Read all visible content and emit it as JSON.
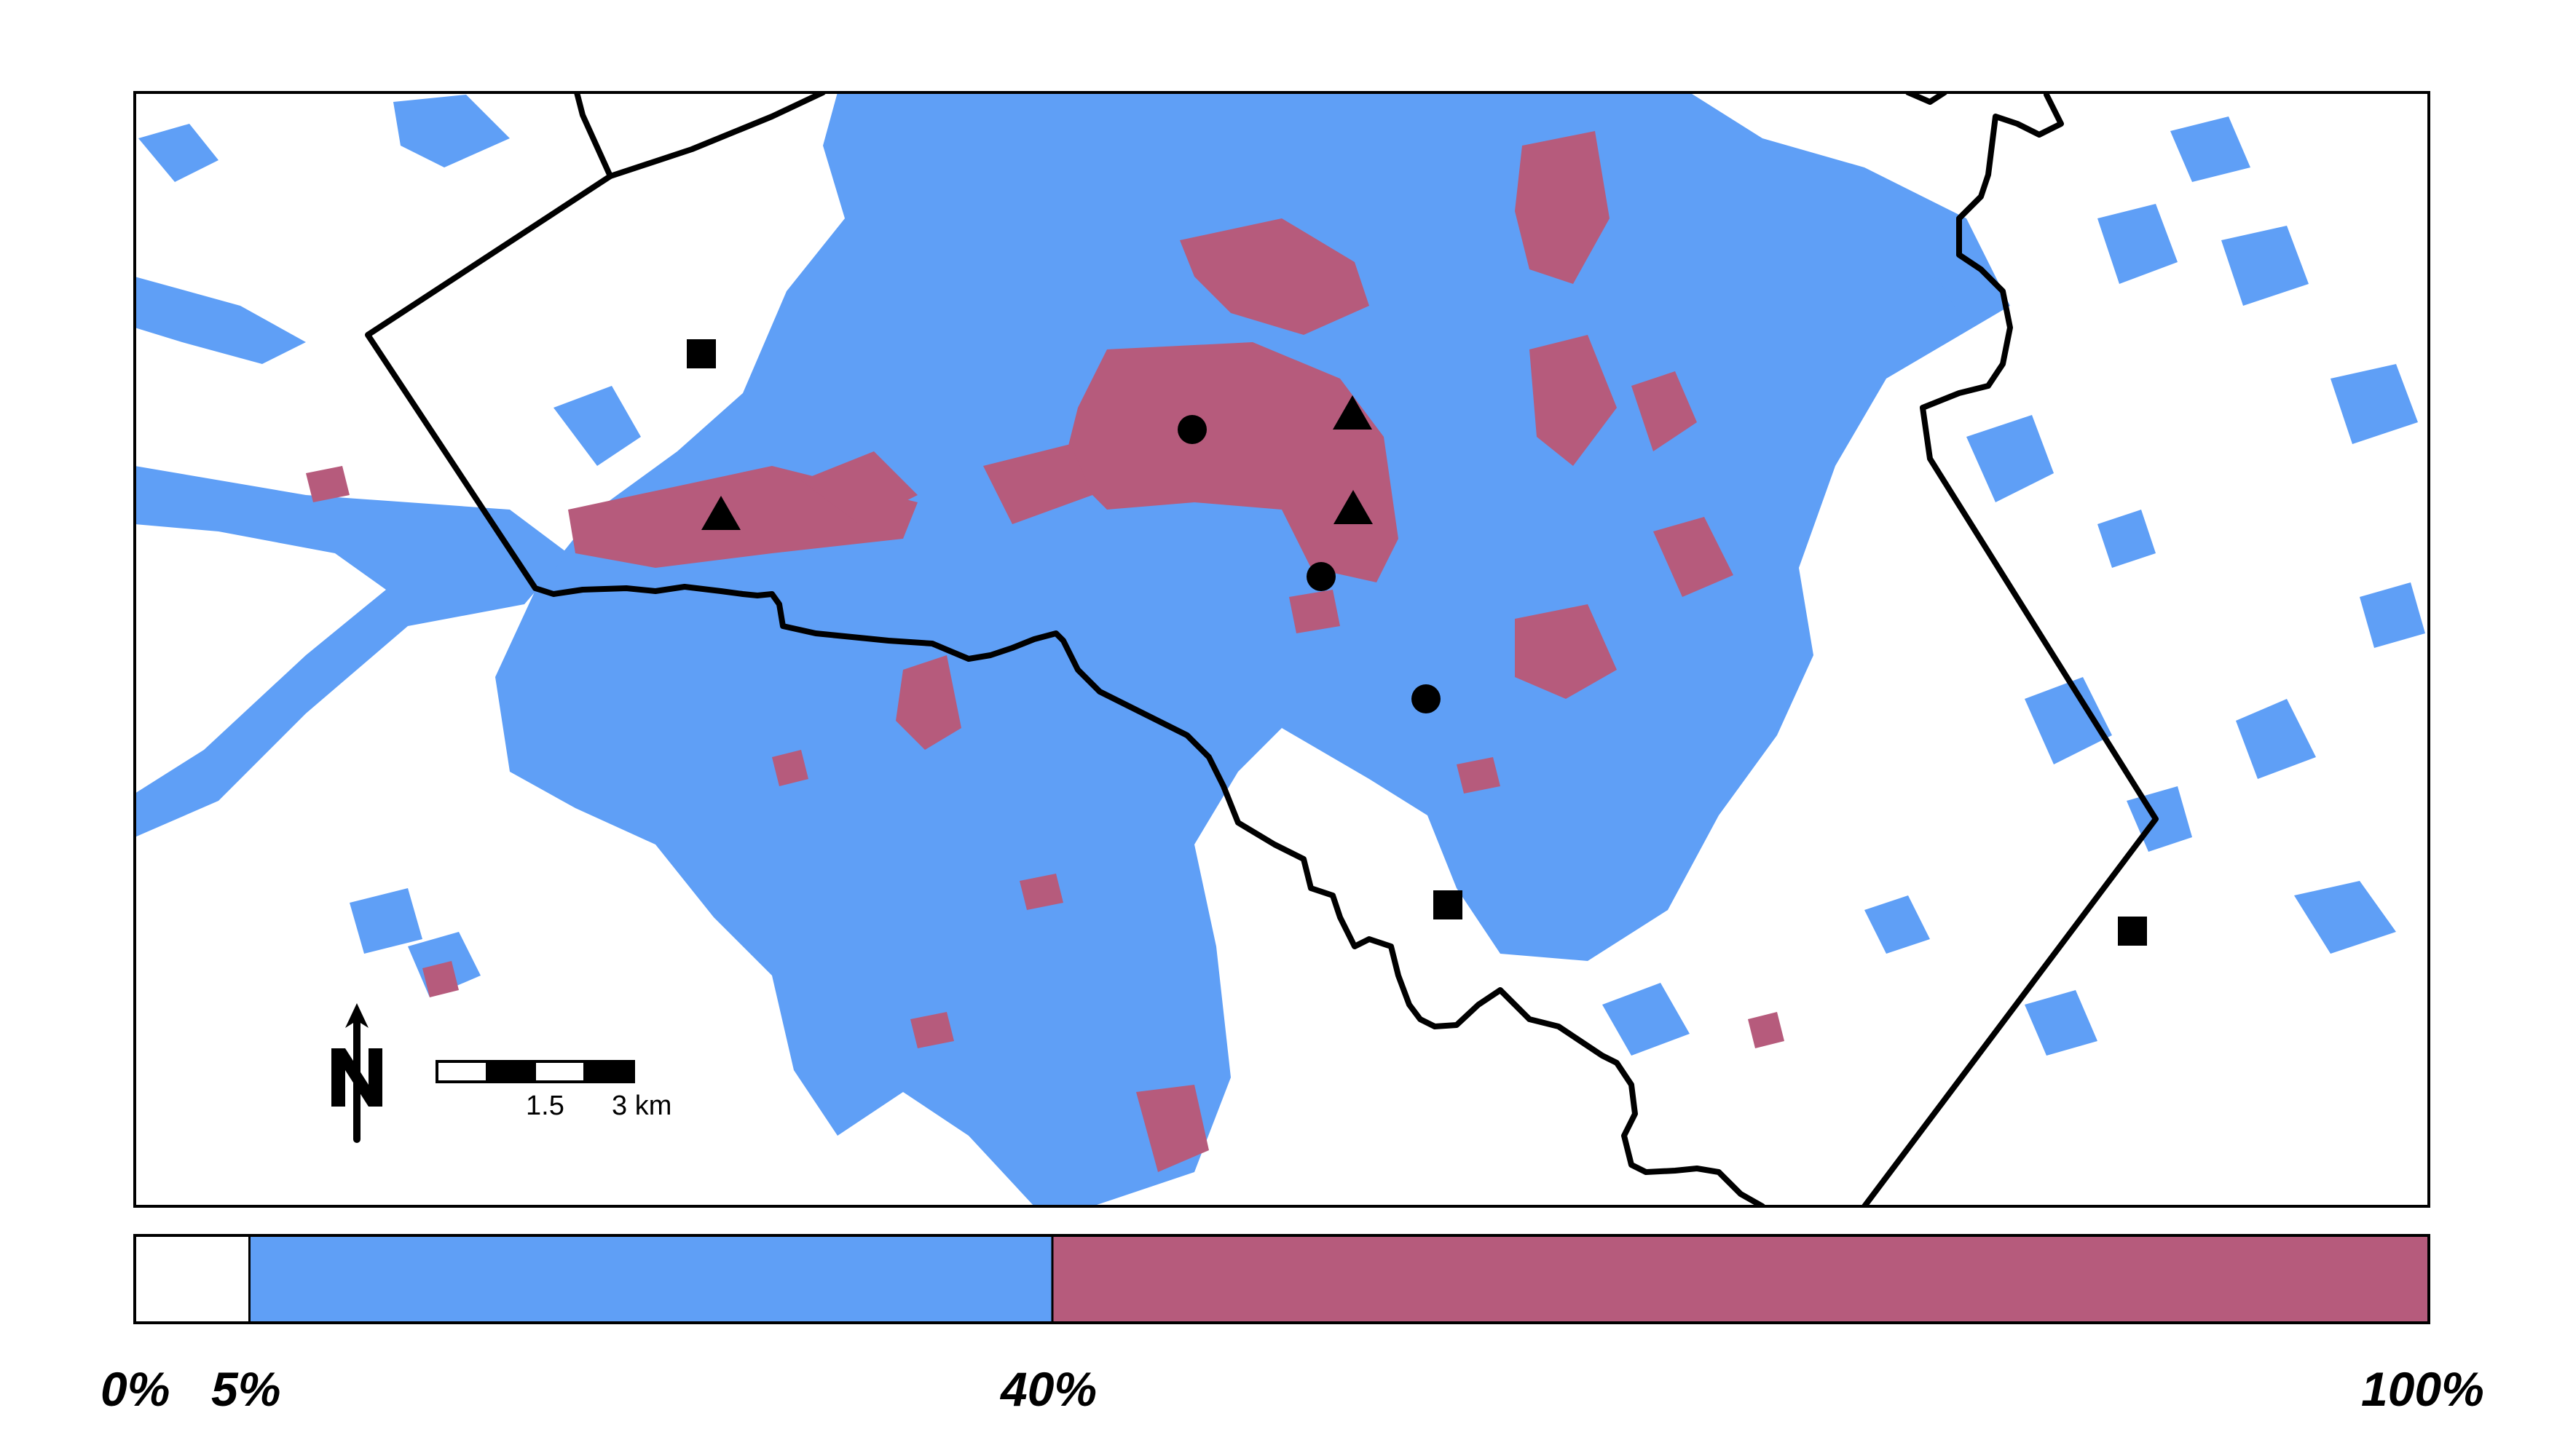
{
  "map": {
    "colors": {
      "low": "#ffffff",
      "medium": "#5f9ff6",
      "high": "#b65b7c",
      "boundary": "#000000"
    },
    "markers": [
      {
        "shape": "square",
        "name": "square-marker"
      },
      {
        "shape": "square",
        "name": "square-marker"
      },
      {
        "shape": "square",
        "name": "square-marker"
      },
      {
        "shape": "triangle",
        "name": "triangle-marker"
      },
      {
        "shape": "triangle",
        "name": "triangle-marker"
      },
      {
        "shape": "triangle",
        "name": "triangle-marker"
      },
      {
        "shape": "circle",
        "name": "circle-marker"
      },
      {
        "shape": "circle",
        "name": "circle-marker"
      },
      {
        "shape": "circle",
        "name": "circle-marker"
      }
    ],
    "north_arrow_icon": "north-arrow-icon",
    "scale_bar": {
      "labels": [
        "1.5",
        "3 km"
      ]
    }
  },
  "legend": {
    "breaks": [
      {
        "value": 0,
        "label": "0%"
      },
      {
        "value": 5,
        "label": "5%"
      },
      {
        "value": 40,
        "label": "40%"
      },
      {
        "value": 100,
        "label": "100%"
      }
    ],
    "bins": [
      {
        "from": 0,
        "to": 5,
        "color": "#ffffff"
      },
      {
        "from": 5,
        "to": 40,
        "color": "#5f9ff6"
      },
      {
        "from": 40,
        "to": 100,
        "color": "#b65b7c"
      }
    ]
  }
}
